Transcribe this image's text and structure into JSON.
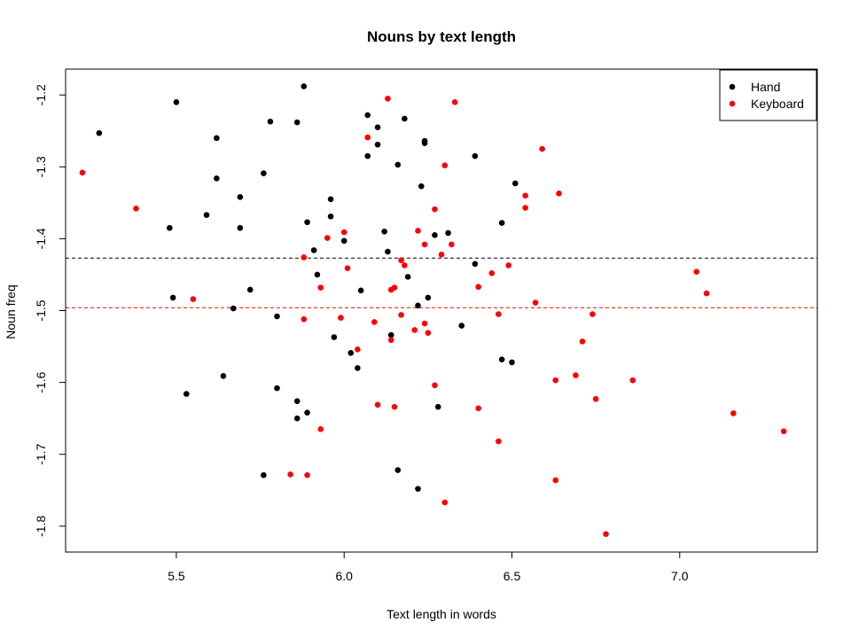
{
  "chart_data": {
    "type": "scatter",
    "title": "Nouns by text length",
    "xlabel": "Text length in words",
    "ylabel": "Noun freq",
    "xlim": [
      5.17,
      7.41
    ],
    "ylim": [
      -1.836,
      -1.164
    ],
    "xticks": [
      5.5,
      6.0,
      6.5,
      7.0
    ],
    "xtick_labels": [
      "5.5",
      "6.0",
      "6.5",
      "7.0"
    ],
    "yticks": [
      -1.2,
      -1.3,
      -1.4,
      -1.5,
      -1.6,
      -1.7,
      -1.8
    ],
    "ytick_labels": [
      "-1.2",
      "-1.3",
      "-1.4",
      "-1.5",
      "-1.6",
      "-1.7",
      "-1.8"
    ],
    "grid": false,
    "legend_position": "top-right",
    "series": [
      {
        "name": "Hand",
        "color": "#000000",
        "mean_line": -1.427,
        "points": [
          [
            5.27,
            -1.253
          ],
          [
            5.5,
            -1.21
          ],
          [
            5.48,
            -1.385
          ],
          [
            5.49,
            -1.482
          ],
          [
            5.53,
            -1.616
          ],
          [
            5.59,
            -1.367
          ],
          [
            5.62,
            -1.26
          ],
          [
            5.62,
            -1.316
          ],
          [
            5.64,
            -1.591
          ],
          [
            5.67,
            -1.497
          ],
          [
            5.69,
            -1.342
          ],
          [
            5.69,
            -1.385
          ],
          [
            5.72,
            -1.471
          ],
          [
            5.76,
            -1.309
          ],
          [
            5.76,
            -1.729
          ],
          [
            5.78,
            -1.237
          ],
          [
            5.8,
            -1.508
          ],
          [
            5.8,
            -1.608
          ],
          [
            5.86,
            -1.238
          ],
          [
            5.86,
            -1.626
          ],
          [
            5.86,
            -1.65
          ],
          [
            5.88,
            -1.188
          ],
          [
            5.89,
            -1.377
          ],
          [
            5.89,
            -1.642
          ],
          [
            5.91,
            -1.416
          ],
          [
            5.92,
            -1.45
          ],
          [
            5.96,
            -1.345
          ],
          [
            5.96,
            -1.369
          ],
          [
            5.97,
            -1.537
          ],
          [
            6.0,
            -1.403
          ],
          [
            6.02,
            -1.559
          ],
          [
            6.04,
            -1.58
          ],
          [
            6.05,
            -1.472
          ],
          [
            6.07,
            -1.228
          ],
          [
            6.07,
            -1.285
          ],
          [
            6.1,
            -1.245
          ],
          [
            6.1,
            -1.269
          ],
          [
            6.12,
            -1.39
          ],
          [
            6.13,
            -1.418
          ],
          [
            6.14,
            -1.534
          ],
          [
            6.16,
            -1.297
          ],
          [
            6.16,
            -1.722
          ],
          [
            6.18,
            -1.233
          ],
          [
            6.19,
            -1.453
          ],
          [
            6.22,
            -1.493
          ],
          [
            6.22,
            -1.748
          ],
          [
            6.23,
            -1.327
          ],
          [
            6.24,
            -1.267
          ],
          [
            6.24,
            -1.264
          ],
          [
            6.25,
            -1.482
          ],
          [
            6.27,
            -1.395
          ],
          [
            6.28,
            -1.634
          ],
          [
            6.31,
            -1.392
          ],
          [
            6.35,
            -1.521
          ],
          [
            6.39,
            -1.285
          ],
          [
            6.39,
            -1.435
          ],
          [
            6.47,
            -1.568
          ],
          [
            6.47,
            -1.378
          ],
          [
            6.5,
            -1.572
          ],
          [
            6.51,
            -1.323
          ]
        ]
      },
      {
        "name": "Keyboard",
        "color": "#ff0000",
        "mean_line": -1.496,
        "points": [
          [
            5.22,
            -1.308
          ],
          [
            5.38,
            -1.358
          ],
          [
            5.55,
            -1.484
          ],
          [
            5.84,
            -1.728
          ],
          [
            5.88,
            -1.426
          ],
          [
            5.88,
            -1.512
          ],
          [
            5.89,
            -1.729
          ],
          [
            5.93,
            -1.665
          ],
          [
            5.93,
            -1.468
          ],
          [
            5.95,
            -1.399
          ],
          [
            5.99,
            -1.51
          ],
          [
            6.0,
            -1.391
          ],
          [
            6.01,
            -1.441
          ],
          [
            6.04,
            -1.554
          ],
          [
            6.07,
            -1.259
          ],
          [
            6.09,
            -1.516
          ],
          [
            6.1,
            -1.631
          ],
          [
            6.13,
            -1.205
          ],
          [
            6.14,
            -1.541
          ],
          [
            6.14,
            -1.471
          ],
          [
            6.15,
            -1.468
          ],
          [
            6.15,
            -1.634
          ],
          [
            6.17,
            -1.43
          ],
          [
            6.17,
            -1.506
          ],
          [
            6.18,
            -1.437
          ],
          [
            6.21,
            -1.527
          ],
          [
            6.22,
            -1.389
          ],
          [
            6.24,
            -1.408
          ],
          [
            6.24,
            -1.518
          ],
          [
            6.25,
            -1.531
          ],
          [
            6.27,
            -1.359
          ],
          [
            6.27,
            -1.604
          ],
          [
            6.29,
            -1.422
          ],
          [
            6.3,
            -1.298
          ],
          [
            6.3,
            -1.767
          ],
          [
            6.32,
            -1.408
          ],
          [
            6.33,
            -1.21
          ],
          [
            6.4,
            -1.467
          ],
          [
            6.4,
            -1.636
          ],
          [
            6.44,
            -1.448
          ],
          [
            6.46,
            -1.505
          ],
          [
            6.46,
            -1.682
          ],
          [
            6.49,
            -1.437
          ],
          [
            6.54,
            -1.357
          ],
          [
            6.54,
            -1.34
          ],
          [
            6.57,
            -1.489
          ],
          [
            6.59,
            -1.275
          ],
          [
            6.63,
            -1.597
          ],
          [
            6.64,
            -1.337
          ],
          [
            6.63,
            -1.736
          ],
          [
            6.69,
            -1.59
          ],
          [
            6.71,
            -1.543
          ],
          [
            6.74,
            -1.505
          ],
          [
            6.75,
            -1.623
          ],
          [
            6.78,
            -1.811
          ],
          [
            6.86,
            -1.597
          ],
          [
            7.05,
            -1.446
          ],
          [
            7.08,
            -1.476
          ],
          [
            7.16,
            -1.643
          ],
          [
            7.31,
            -1.668
          ]
        ]
      }
    ]
  }
}
